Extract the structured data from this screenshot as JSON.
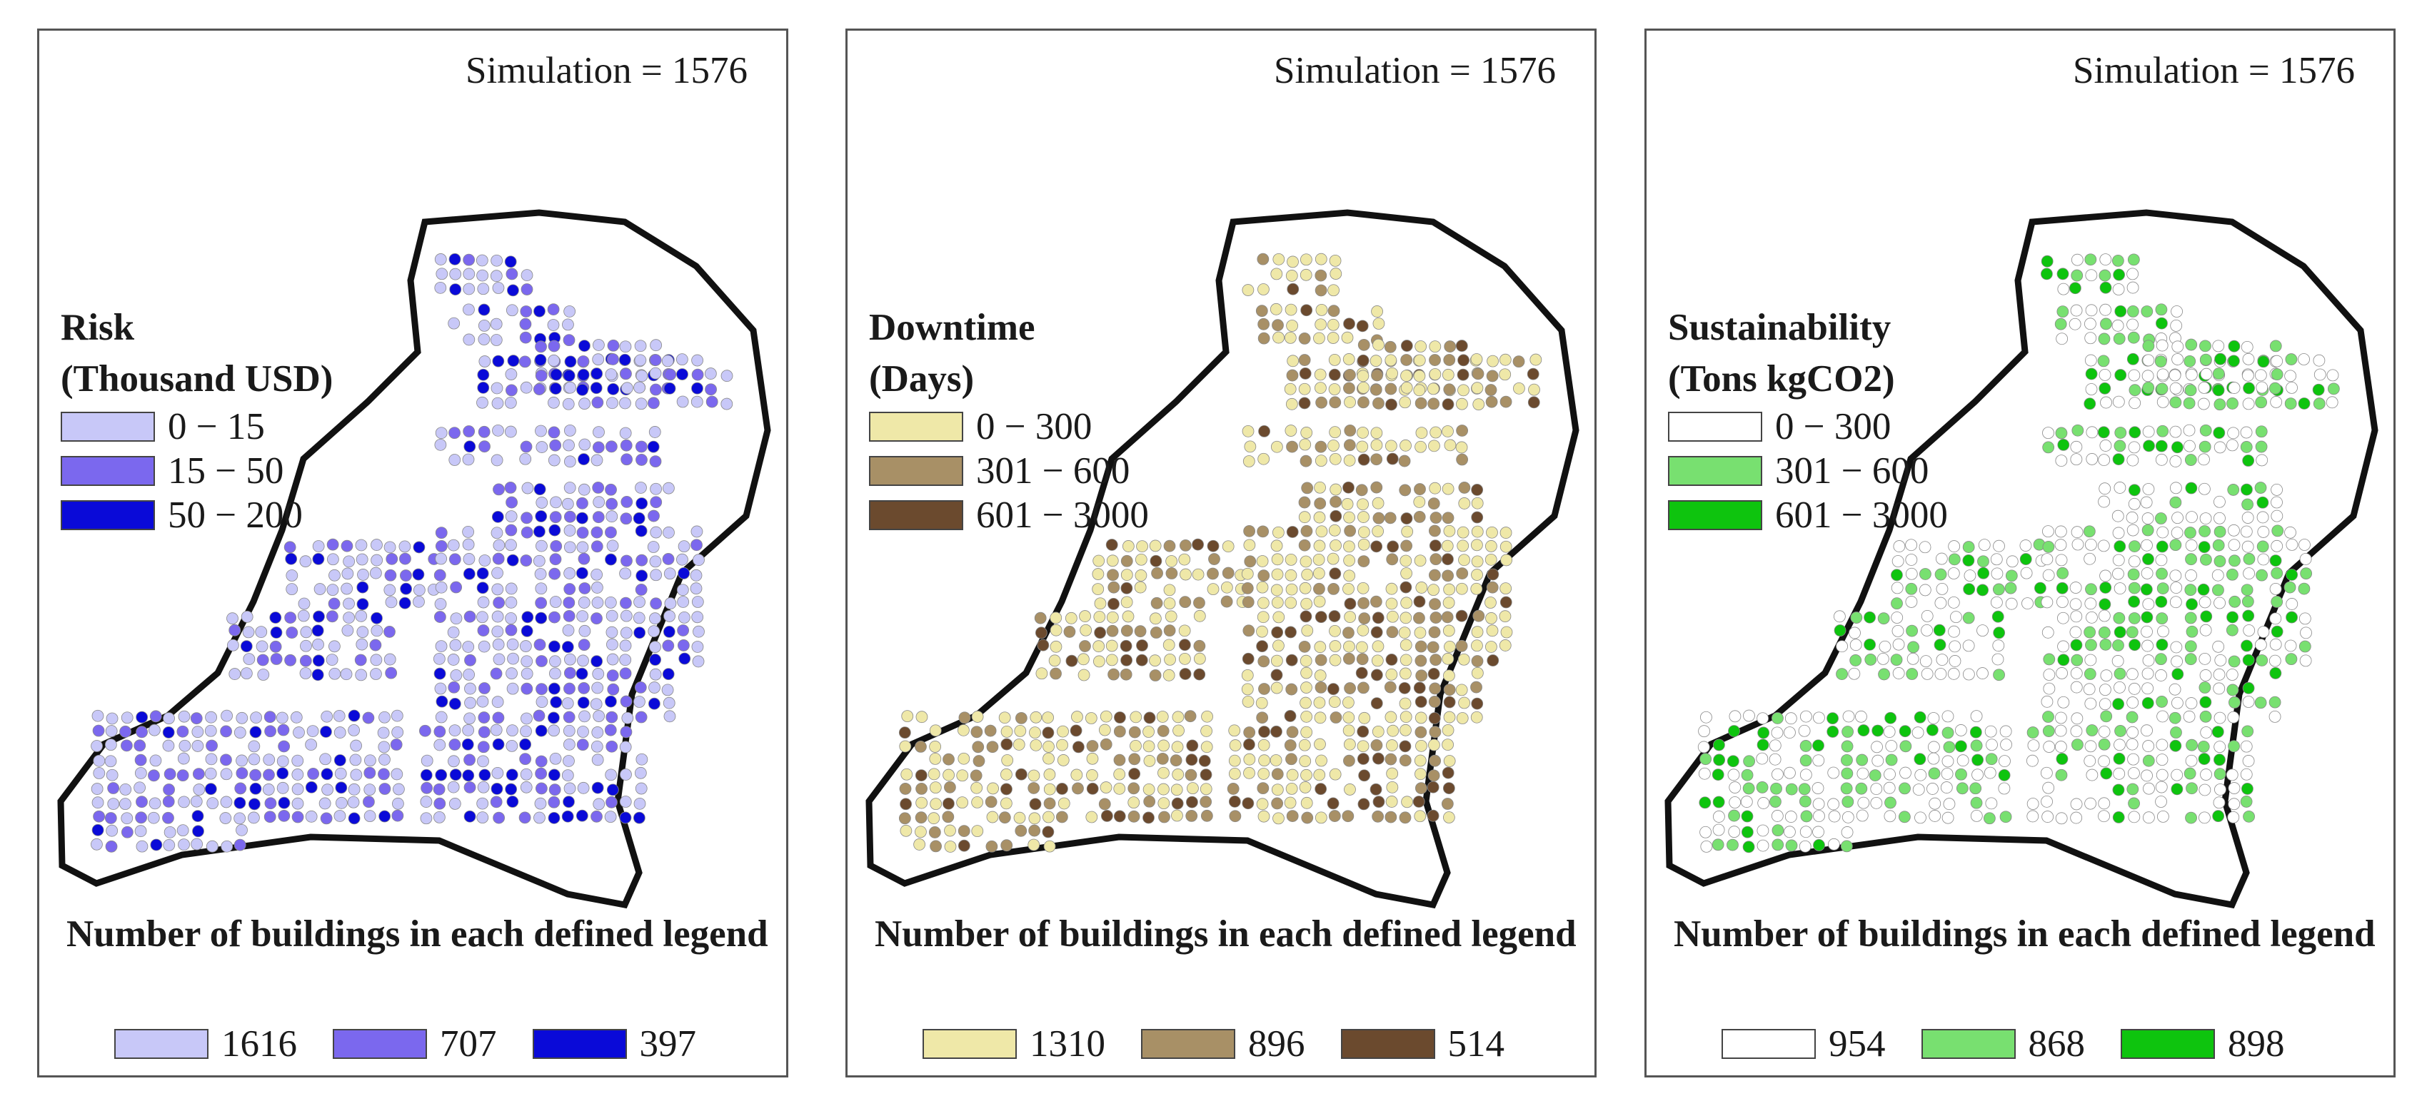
{
  "panels": [
    {
      "simulation": "Simulation = 1576",
      "legend_title_1": "Risk",
      "legend_title_2": "(Thousand USD)",
      "legend": [
        {
          "label": "0 − 15",
          "color": "#c8c8f8"
        },
        {
          "label": "15 − 50",
          "color": "#7b68ee"
        },
        {
          "label": "50 − 200",
          "color": "#0a0ad8"
        }
      ],
      "count_title": "Number of buildings in each defined legend",
      "counts": [
        {
          "value": "1616",
          "color": "#c8c8f8"
        },
        {
          "value": "707",
          "color": "#7b68ee"
        },
        {
          "value": "397",
          "color": "#0a0ad8"
        }
      ]
    },
    {
      "simulation": "Simulation = 1576",
      "legend_title_1": "Downtime",
      "legend_title_2": "(Days)",
      "legend": [
        {
          "label": "0 − 300",
          "color": "#efe8a8"
        },
        {
          "label": "301 − 600",
          "color": "#a89066"
        },
        {
          "label": "601 − 3000",
          "color": "#6b4a2e"
        }
      ],
      "count_title": "Number of buildings in each defined legend",
      "counts": [
        {
          "value": "1310",
          "color": "#efe8a8"
        },
        {
          "value": "896",
          "color": "#a89066"
        },
        {
          "value": "514",
          "color": "#6b4a2e"
        }
      ]
    },
    {
      "simulation": "Simulation = 1576",
      "legend_title_1": "Sustainability",
      "legend_title_2": "(Tons kgCO2)",
      "legend": [
        {
          "label": "0 − 300",
          "color": "#ffffff"
        },
        {
          "label": "301 − 600",
          "color": "#78e070"
        },
        {
          "label": "601 − 3000",
          "color": "#0ec40e"
        }
      ],
      "count_title": "Number of buildings in each defined legend",
      "counts": [
        {
          "value": "954",
          "color": "#ffffff"
        },
        {
          "value": "868",
          "color": "#78e070"
        },
        {
          "value": "898",
          "color": "#0ec40e"
        }
      ]
    }
  ]
}
